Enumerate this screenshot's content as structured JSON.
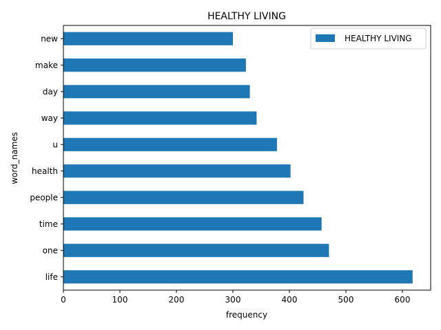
{
  "chart_data": {
    "type": "bar",
    "orientation": "horizontal",
    "title": "HEALTHY LIVING",
    "xlabel": "frequency",
    "ylabel": "word_names",
    "categories": [
      "life",
      "one",
      "time",
      "people",
      "health",
      "u",
      "way",
      "day",
      "make",
      "new"
    ],
    "series": [
      {
        "name": "HEALTHY LIVING",
        "values": [
          618,
          470,
          457,
          425,
          402,
          378,
          342,
          330,
          323,
          300
        ],
        "color": "#1f77b4"
      }
    ],
    "xlim": [
      0,
      650
    ],
    "xticks": [
      0,
      100,
      200,
      300,
      400,
      500,
      600
    ],
    "grid": false,
    "legend_position": "top-right"
  }
}
